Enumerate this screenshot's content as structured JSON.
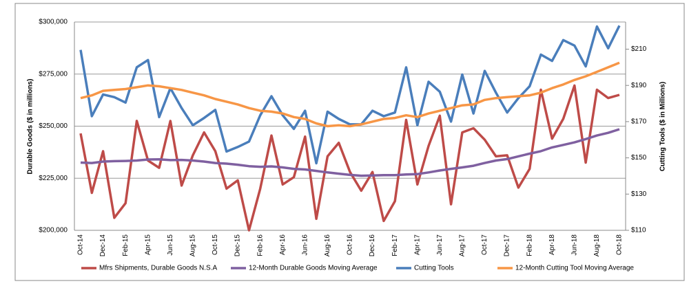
{
  "chart_data": {
    "type": "line",
    "ylabel": "Durable Goods ($ in millions)",
    "y2label": "Cutting Tools ($ in Millions)",
    "categories": [
      "Oct-14",
      null,
      "Dec-14",
      null,
      "Feb-15",
      null,
      "Apr-15",
      null,
      "Jun-15",
      null,
      "Aug-15",
      null,
      "Oct-15",
      null,
      "Dec-15",
      null,
      "Feb-16",
      null,
      "Apr-16",
      null,
      "Jun-16",
      null,
      "Aug-16",
      null,
      "Oct-16",
      null,
      "Dec-16",
      null,
      "Feb-17",
      null,
      "Apr-17",
      null,
      "Jun-17",
      null,
      "Aug-17",
      null,
      "Oct-17",
      null,
      "Dec-17",
      null,
      "Feb-18",
      null,
      "Apr-18",
      null,
      "Jun-18",
      null,
      "Aug-18",
      null,
      "Oct-18"
    ],
    "series": [
      {
        "name": "Mfrs Shipments, Durable Goods N.S.A",
        "color": "#be4b48",
        "axis": "y",
        "values": [
          246500,
          218000,
          238000,
          206000,
          213000,
          252500,
          233500,
          230000,
          252500,
          221500,
          236000,
          247000,
          238000,
          220000,
          224000,
          200000,
          220000,
          245500,
          222000,
          225500,
          245000,
          205500,
          235500,
          242000,
          228000,
          219000,
          228000,
          204500,
          214000,
          253000,
          222000,
          240500,
          255000,
          212500,
          247000,
          249000,
          243500,
          235500,
          236000,
          220500,
          229500,
          267500,
          244000,
          253500,
          269500,
          232500,
          267500,
          263500,
          265000
        ]
      },
      {
        "name": "12-Month Durable Goods Moving Average",
        "color": "#7f60a0",
        "axis": "y",
        "values": [
          232500,
          232300,
          233000,
          233200,
          233300,
          233500,
          234000,
          234100,
          233700,
          233800,
          233500,
          233000,
          232300,
          232000,
          231500,
          230800,
          230500,
          230700,
          230200,
          229500,
          229200,
          228500,
          227800,
          227200,
          226600,
          226200,
          226300,
          226500,
          226500,
          226800,
          227000,
          227800,
          228700,
          229500,
          230200,
          231000,
          232300,
          233500,
          234200,
          235500,
          236800,
          238000,
          239800,
          241000,
          242200,
          243800,
          245500,
          246800,
          248500
        ]
      },
      {
        "name": "Cutting Tools",
        "color": "#4a7ebb",
        "axis": "y2",
        "values": [
          209.6,
          173,
          185,
          183.5,
          180.5,
          200,
          204,
          172.5,
          188.5,
          177.5,
          168,
          172,
          176.5,
          153.5,
          156,
          159,
          173.5,
          184,
          173.5,
          166,
          176,
          147,
          175.5,
          171.5,
          168.5,
          168.5,
          176,
          173,
          175,
          200,
          168,
          192,
          186.5,
          170,
          196,
          174.5,
          198,
          186,
          175,
          183,
          189.5,
          207,
          203.5,
          215,
          212,
          200.5,
          222.5,
          210.5,
          223
        ]
      },
      {
        "name": "12-Month Cutting Tool Moving Average",
        "color": "#f79646",
        "axis": "y2",
        "values": [
          183,
          184.5,
          187,
          187.5,
          188,
          189,
          190,
          189.5,
          188.5,
          187.5,
          186,
          184.5,
          182.5,
          181,
          179.5,
          177.5,
          176,
          175.5,
          174.5,
          172.5,
          171.5,
          169,
          167.5,
          168,
          167.5,
          168.5,
          170,
          171.5,
          172,
          173.5,
          172.5,
          174.5,
          176,
          177.5,
          179,
          179.5,
          182,
          183,
          183.5,
          184,
          184.5,
          186,
          188.5,
          190.5,
          193,
          195,
          197.5,
          200,
          202.5
        ]
      }
    ],
    "ylim": [
      200000,
      300000
    ],
    "yticks": [
      {
        "value": 200000,
        "label": "$200,000"
      },
      {
        "value": 225000,
        "label": "$225,000"
      },
      {
        "value": 250000,
        "label": "$250,000"
      },
      {
        "value": 275000,
        "label": "$275,000"
      },
      {
        "value": 300000,
        "label": "$300,000"
      }
    ],
    "y2lim": [
      110,
      225
    ],
    "y2ticks": [
      {
        "value": 110,
        "label": "$110"
      },
      {
        "value": 130,
        "label": "$130"
      },
      {
        "value": 150,
        "label": "$150"
      },
      {
        "value": 170,
        "label": "$170"
      },
      {
        "value": 190,
        "label": "$190"
      },
      {
        "value": 210,
        "label": "$210"
      }
    ],
    "grid": true,
    "legend": "bottom"
  }
}
